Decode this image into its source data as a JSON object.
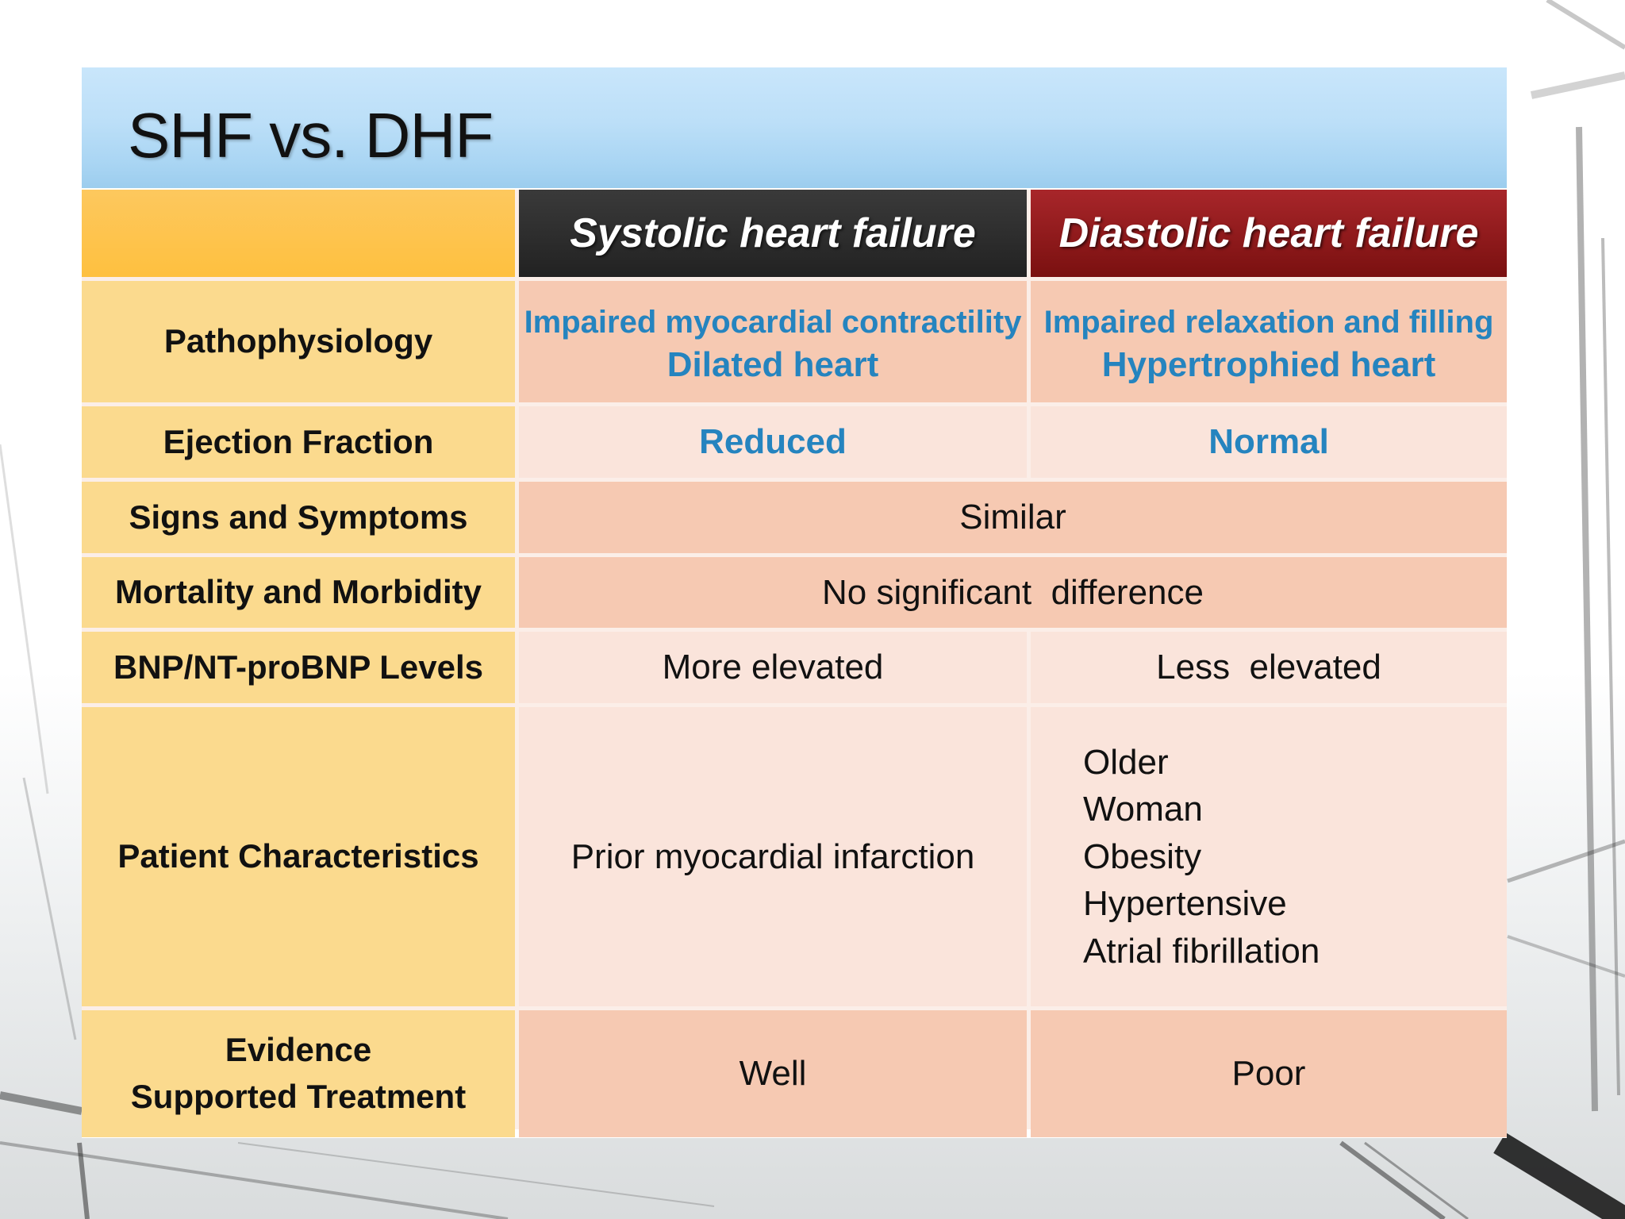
{
  "slide": {
    "title": "SHF vs. DHF"
  },
  "table": {
    "columns": [
      "Systolic heart failure",
      "Diastolic heart failure"
    ],
    "rows": {
      "pathophysiology": {
        "label": "Pathophysiology",
        "systolic": [
          "Impaired myocardial contractility",
          "Dilated heart"
        ],
        "diastolic": [
          "Impaired relaxation and filling",
          "Hypertrophied heart"
        ]
      },
      "ejection_fraction": {
        "label": "Ejection Fraction",
        "systolic": "Reduced",
        "diastolic": "Normal"
      },
      "signs_symptoms": {
        "label": "Signs and Symptoms",
        "both": "Similar"
      },
      "mortality": {
        "label": "Mortality and Morbidity",
        "both": "No significant  difference"
      },
      "bnp": {
        "label": "BNP/NT-proBNP Levels",
        "systolic": "More elevated",
        "diastolic": "Less  elevated"
      },
      "patient": {
        "label": "Patient Characteristics",
        "systolic": "Prior myocardial infarction",
        "diastolic": [
          "Older",
          "Woman",
          "Obesity",
          "Hypertensive",
          "Atrial fibrillation"
        ]
      },
      "evidence": {
        "label": [
          "Evidence",
          "Supported Treatment"
        ],
        "systolic": "Well",
        "diastolic": "Poor"
      }
    }
  },
  "colors": {
    "title_bar": "#bcdff8",
    "row_header": "#fbda8e",
    "systolic_header": "#2b2b2b",
    "diastolic_header": "#8e1a1d",
    "cell_dark": "#f6c9b2",
    "cell_light": "#fae4db",
    "accent_blue": "#2584bf"
  }
}
